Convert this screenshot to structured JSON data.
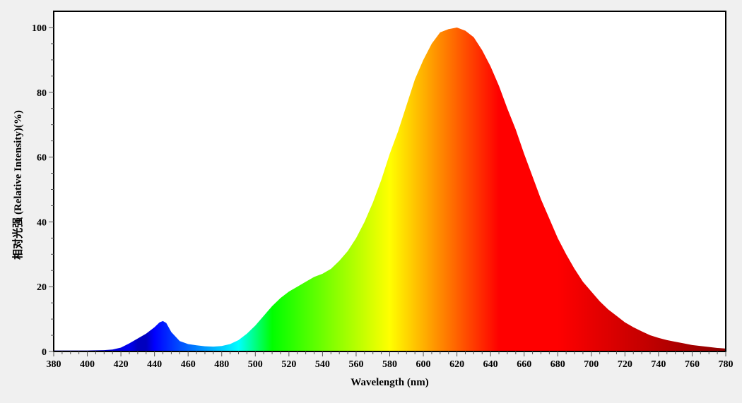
{
  "chart_data": {
    "type": "area",
    "xlabel": "Wavelength (nm)",
    "ylabel": "相对光强 (Relative Intensity)(%)",
    "xlim": [
      380,
      780
    ],
    "ylim": [
      0,
      105
    ],
    "x_ticks": [
      380,
      400,
      420,
      440,
      460,
      480,
      500,
      520,
      540,
      560,
      580,
      600,
      620,
      640,
      660,
      680,
      700,
      720,
      740,
      760,
      780
    ],
    "y_ticks": [
      0,
      20,
      40,
      60,
      80,
      100
    ],
    "grid": false,
    "legend": "none",
    "fill": "visible-spectrum color gradient by wavelength",
    "series": [
      {
        "x": [
          380,
          400,
          410,
          415,
          420,
          425,
          430,
          435,
          440,
          443,
          445,
          447,
          450,
          455,
          460,
          465,
          470,
          475,
          480,
          485,
          490,
          495,
          500,
          505,
          510,
          515,
          520,
          525,
          530,
          535,
          540,
          545,
          550,
          555,
          560,
          565,
          570,
          575,
          580,
          585,
          590,
          595,
          600,
          605,
          610,
          615,
          620,
          625,
          630,
          635,
          640,
          645,
          650,
          655,
          660,
          665,
          670,
          675,
          680,
          685,
          690,
          695,
          700,
          705,
          710,
          715,
          720,
          725,
          730,
          735,
          740,
          745,
          750,
          755,
          760,
          765,
          770,
          775,
          780
        ],
        "y": [
          0.3,
          0.3,
          0.4,
          0.6,
          1.2,
          2.5,
          4.0,
          5.5,
          7.5,
          9.0,
          9.4,
          8.8,
          6.0,
          3.2,
          2.3,
          1.9,
          1.6,
          1.5,
          1.7,
          2.3,
          3.5,
          5.5,
          8.0,
          11.0,
          14.0,
          16.5,
          18.5,
          20.0,
          21.5,
          23.0,
          24.0,
          25.5,
          28.0,
          31.0,
          35.0,
          40.0,
          46.0,
          53.0,
          61.0,
          68.0,
          76.0,
          84.0,
          90.0,
          95.0,
          98.5,
          99.5,
          100.0,
          99.0,
          97.0,
          93.0,
          88.0,
          82.0,
          75.0,
          68.5,
          61.0,
          54.0,
          47.0,
          41.0,
          35.0,
          30.0,
          25.5,
          21.5,
          18.5,
          15.5,
          13.0,
          11.0,
          9.0,
          7.5,
          6.2,
          5.0,
          4.2,
          3.5,
          3.0,
          2.5,
          2.0,
          1.7,
          1.4,
          1.1,
          0.9
        ]
      }
    ]
  }
}
